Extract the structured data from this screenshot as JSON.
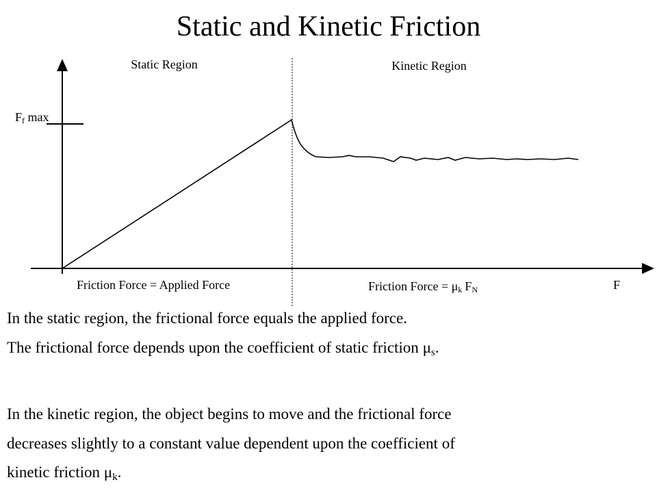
{
  "title": "Static and Kinetic Friction",
  "diagram": {
    "static_region": "Static Region",
    "kinetic_region": "Kinetic Region",
    "y_label": {
      "main": "F",
      "sub": "f",
      "rest": " max"
    },
    "x_label": "F",
    "static_formula": "Friction Force = Applied Force",
    "kinetic_formula": {
      "text": "Friction Force = ",
      "mu": "μ",
      "mu_sub": "k",
      "force": "F",
      "force_sub": "N"
    }
  },
  "paragraphs": [
    {
      "lines": [
        "In the static region, the frictional force equals the applied force.",
        "The frictional force depends upon the coefficient of static friction "
      ],
      "symbol": "μ",
      "symbol_sub": "s",
      "end": "."
    },
    {
      "lines": [
        "In the kinetic region, the object begins to move and the frictional force",
        "decreases slightly to a constant value dependent upon the coefficient of",
        "kinetic friction "
      ],
      "symbol": "μ",
      "symbol_sub": "k",
      "end": "."
    }
  ]
}
